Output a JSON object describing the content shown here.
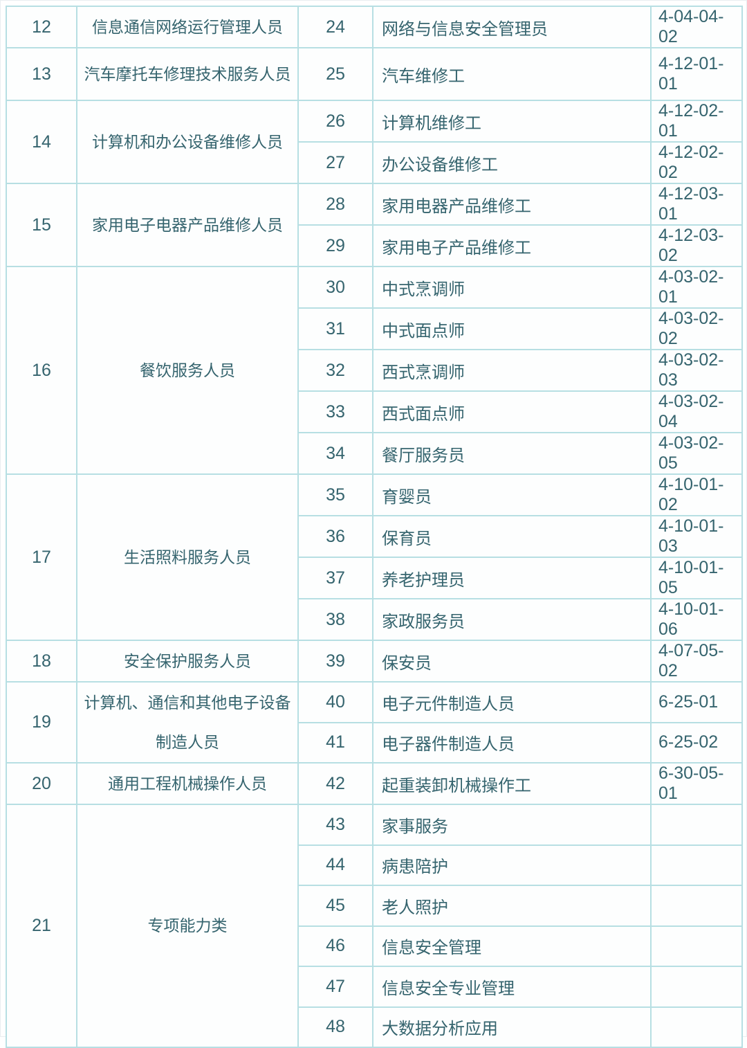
{
  "theme": {
    "text_color": "#35646e",
    "border_color": "#b7dfe3",
    "background_color": "#ffffff"
  },
  "table": {
    "groups": [
      {
        "no": "12",
        "category": "信息通信网络运行管理人员",
        "items": [
          {
            "no": "24",
            "name": "网络与信息安全管理员",
            "code": "4-04-04-02"
          }
        ]
      },
      {
        "no": "13",
        "category": "汽车摩托车修理技术服务人员",
        "items": [
          {
            "no": "25",
            "name": "汽车维修工",
            "code": "4-12-01-01"
          }
        ]
      },
      {
        "no": "14",
        "category": "计算机和办公设备维修人员",
        "items": [
          {
            "no": "26",
            "name": "计算机维修工",
            "code": "4-12-02-01"
          },
          {
            "no": "27",
            "name": "办公设备维修工",
            "code": "4-12-02-02"
          }
        ]
      },
      {
        "no": "15",
        "category": "家用电子电器产品维修人员",
        "items": [
          {
            "no": "28",
            "name": "家用电器产品维修工",
            "code": "4-12-03-01"
          },
          {
            "no": "29",
            "name": "家用电子产品维修工",
            "code": "4-12-03-02"
          }
        ]
      },
      {
        "no": "16",
        "category": "餐饮服务人员",
        "items": [
          {
            "no": "30",
            "name": "中式烹调师",
            "code": "4-03-02-01"
          },
          {
            "no": "31",
            "name": "中式面点师",
            "code": "4-03-02-02"
          },
          {
            "no": "32",
            "name": "西式烹调师",
            "code": "4-03-02-03"
          },
          {
            "no": "33",
            "name": "西式面点师",
            "code": "4-03-02-04"
          },
          {
            "no": "34",
            "name": "餐厅服务员",
            "code": "4-03-02-05"
          }
        ]
      },
      {
        "no": "17",
        "category": "生活照料服务人员",
        "items": [
          {
            "no": "35",
            "name": "育婴员",
            "code": "4-10-01-02"
          },
          {
            "no": "36",
            "name": "保育员",
            "code": "4-10-01-03"
          },
          {
            "no": "37",
            "name": "养老护理员",
            "code": "4-10-01-05"
          },
          {
            "no": "38",
            "name": "家政服务员",
            "code": "4-10-01-06"
          }
        ]
      },
      {
        "no": "18",
        "category": "安全保护服务人员",
        "items": [
          {
            "no": "39",
            "name": "保安员",
            "code": "4-07-05-02"
          }
        ]
      },
      {
        "no": "19",
        "category": "计算机、通信和其他电子设备制造人员",
        "items": [
          {
            "no": "40",
            "name": "电子元件制造人员",
            "code": "6-25-01"
          },
          {
            "no": "41",
            "name": "电子器件制造人员",
            "code": "6-25-02"
          }
        ]
      },
      {
        "no": "20",
        "category": "通用工程机械操作人员",
        "items": [
          {
            "no": "42",
            "name": "起重装卸机械操作工",
            "code": "6-30-05-01"
          }
        ]
      },
      {
        "no": "21",
        "category": "专项能力类",
        "items": [
          {
            "no": "43",
            "name": "家事服务",
            "code": ""
          },
          {
            "no": "44",
            "name": "病患陪护",
            "code": ""
          },
          {
            "no": "45",
            "name": "老人照护",
            "code": ""
          },
          {
            "no": "46",
            "name": "信息安全管理",
            "code": ""
          },
          {
            "no": "47",
            "name": "信息安全专业管理",
            "code": ""
          },
          {
            "no": "48",
            "name": "大数据分析应用",
            "code": ""
          }
        ]
      }
    ]
  }
}
